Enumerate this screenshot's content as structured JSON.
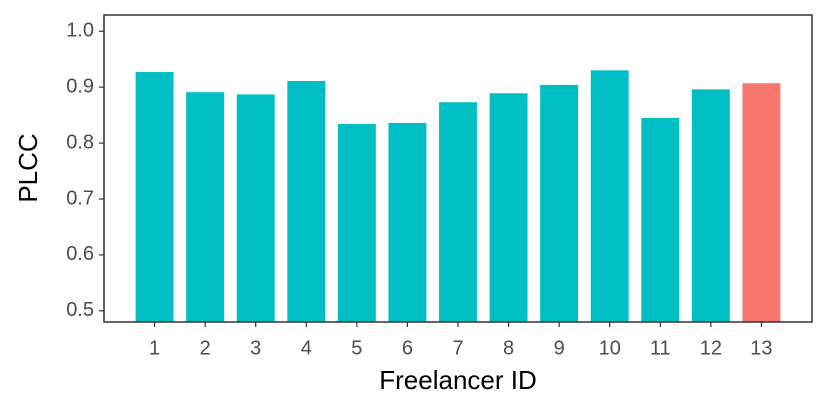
{
  "chart_data": {
    "type": "bar",
    "x_label": "Freelancer ID",
    "y_label": "PLCC",
    "categories": [
      "1",
      "2",
      "3",
      "4",
      "5",
      "6",
      "7",
      "8",
      "9",
      "10",
      "11",
      "12",
      "13"
    ],
    "values": [
      0.927,
      0.891,
      0.887,
      0.911,
      0.834,
      0.836,
      0.873,
      0.889,
      0.904,
      0.93,
      0.845,
      0.896,
      0.907
    ],
    "colors": [
      "#00bfc4",
      "#00bfc4",
      "#00bfc4",
      "#00bfc4",
      "#00bfc4",
      "#00bfc4",
      "#00bfc4",
      "#00bfc4",
      "#00bfc4",
      "#00bfc4",
      "#00bfc4",
      "#00bfc4",
      "#f8766d"
    ],
    "ylim": [
      0.48,
      1.029
    ],
    "yticks": [
      0.5,
      0.6,
      0.7,
      0.8,
      0.9,
      {
        "value": 1,
        "label": "1.0"
      }
    ],
    "grid": false
  }
}
